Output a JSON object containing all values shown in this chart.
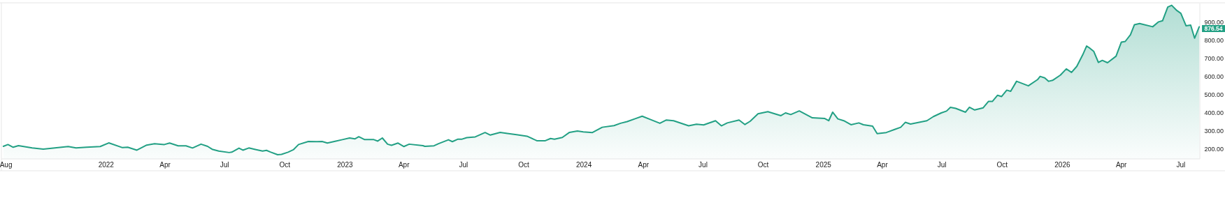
{
  "chart_data": {
    "type": "area",
    "color": "#22a084",
    "xlim": [
      "2021-07-25",
      "2026-07-30"
    ],
    "ylim": [
      150,
      1005
    ],
    "xticks": [
      {
        "value": "2021-08-01",
        "label": "Aug"
      },
      {
        "value": "2022-01-01",
        "label": "2022"
      },
      {
        "value": "2022-04-01",
        "label": "Apr"
      },
      {
        "value": "2022-07-01",
        "label": "Jul"
      },
      {
        "value": "2022-10-01",
        "label": "Oct"
      },
      {
        "value": "2023-01-01",
        "label": "2023"
      },
      {
        "value": "2023-04-01",
        "label": "Apr"
      },
      {
        "value": "2023-07-01",
        "label": "Jul"
      },
      {
        "value": "2023-10-01",
        "label": "Oct"
      },
      {
        "value": "2024-01-01",
        "label": "2024"
      },
      {
        "value": "2024-04-01",
        "label": "Apr"
      },
      {
        "value": "2024-07-01",
        "label": "Jul"
      },
      {
        "value": "2024-10-01",
        "label": "Oct"
      },
      {
        "value": "2025-01-01",
        "label": "2025"
      },
      {
        "value": "2025-04-01",
        "label": "Apr"
      },
      {
        "value": "2025-07-01",
        "label": "Jul"
      },
      {
        "value": "2025-10-01",
        "label": "Oct"
      },
      {
        "value": "2026-01-01",
        "label": "2026"
      },
      {
        "value": "2026-04-01",
        "label": "Apr"
      },
      {
        "value": "2026-07-01",
        "label": "Jul"
      }
    ],
    "yticks": [
      {
        "value": 200,
        "label": "200.00"
      },
      {
        "value": 300,
        "label": "300.00"
      },
      {
        "value": 400,
        "label": "400.00"
      },
      {
        "value": 500,
        "label": "500.00"
      },
      {
        "value": 600,
        "label": "600.00"
      },
      {
        "value": 700,
        "label": "700.00"
      },
      {
        "value": 800,
        "label": "800.00"
      },
      {
        "value": 900,
        "label": "900.00"
      }
    ],
    "x": [
      "2021-07-28",
      "2021-08-04",
      "2021-08-12",
      "2021-08-20",
      "2021-09-10",
      "2021-09-27",
      "2021-11-04",
      "2021-11-16",
      "2021-12-02",
      "2021-12-23",
      "2022-01-05",
      "2022-01-26",
      "2022-02-03",
      "2022-02-17",
      "2022-03-04",
      "2022-03-16",
      "2022-03-31",
      "2022-04-08",
      "2022-04-21",
      "2022-05-03",
      "2022-05-13",
      "2022-05-26",
      "2022-06-05",
      "2022-06-12",
      "2022-06-22",
      "2022-07-08",
      "2022-07-12",
      "2022-07-23",
      "2022-07-29",
      "2022-08-07",
      "2022-08-17",
      "2022-08-28",
      "2022-09-03",
      "2022-09-09",
      "2022-09-20",
      "2022-09-26",
      "2022-10-06",
      "2022-10-14",
      "2022-10-22",
      "2022-11-06",
      "2022-11-19",
      "2022-11-27",
      "2022-12-05",
      "2022-12-18",
      "2022-12-28",
      "2023-01-08",
      "2023-01-16",
      "2023-01-22",
      "2023-01-31",
      "2023-02-14",
      "2023-02-20",
      "2023-02-27",
      "2023-03-07",
      "2023-03-13",
      "2023-03-23",
      "2023-04-01",
      "2023-04-09",
      "2023-04-30",
      "2023-05-03",
      "2023-05-17",
      "2023-05-24",
      "2023-06-08",
      "2023-06-14",
      "2023-06-22",
      "2023-06-28",
      "2023-07-06",
      "2023-07-19",
      "2023-08-03",
      "2023-08-11",
      "2023-08-26",
      "2023-09-06",
      "2023-09-20",
      "2023-10-06",
      "2023-10-21",
      "2023-11-03",
      "2023-11-11",
      "2023-11-17",
      "2023-11-29",
      "2023-12-10",
      "2023-12-22",
      "2023-12-31",
      "2024-01-14",
      "2024-01-29",
      "2024-02-16",
      "2024-02-26",
      "2024-03-07",
      "2024-03-20",
      "2024-03-30",
      "2024-04-12",
      "2024-04-26",
      "2024-05-06",
      "2024-05-17",
      "2024-06-09",
      "2024-06-21",
      "2024-07-02",
      "2024-07-20",
      "2024-07-29",
      "2024-08-07",
      "2024-08-25",
      "2024-09-03",
      "2024-09-11",
      "2024-09-23",
      "2024-10-08",
      "2024-10-28",
      "2024-11-04",
      "2024-11-12",
      "2024-11-25",
      "2024-12-15",
      "2025-01-03",
      "2025-01-09",
      "2025-01-15",
      "2025-01-23",
      "2025-02-01",
      "2025-02-12",
      "2025-02-24",
      "2025-03-03",
      "2025-03-17",
      "2025-03-24",
      "2025-04-07",
      "2025-04-19",
      "2025-04-29",
      "2025-05-06",
      "2025-05-14",
      "2025-06-08",
      "2025-06-18",
      "2025-06-30",
      "2025-07-08",
      "2025-07-14",
      "2025-07-22",
      "2025-08-06",
      "2025-08-12",
      "2025-08-20",
      "2025-09-02",
      "2025-09-10",
      "2025-09-16",
      "2025-09-24",
      "2025-09-30",
      "2025-10-08",
      "2025-10-14",
      "2025-10-23",
      "2025-11-10",
      "2025-11-24",
      "2025-11-28",
      "2025-12-05",
      "2025-12-11",
      "2025-12-17",
      "2025-12-29",
      "2026-01-07",
      "2026-01-15",
      "2026-01-23",
      "2026-02-01",
      "2026-02-07",
      "2026-02-12",
      "2026-02-18",
      "2026-02-25",
      "2026-03-03",
      "2026-03-11",
      "2026-03-24",
      "2026-04-01",
      "2026-04-07",
      "2026-04-15",
      "2026-04-21",
      "2026-04-29",
      "2026-05-19",
      "2026-05-28",
      "2026-06-03",
      "2026-06-11",
      "2026-06-17",
      "2026-06-25",
      "2026-07-01",
      "2026-07-09",
      "2026-07-16",
      "2026-07-22",
      "2026-07-29"
    ],
    "values": [
      219,
      229,
      214,
      223,
      210,
      204,
      218,
      210,
      214,
      218,
      238,
      212,
      214,
      198,
      226,
      233,
      229,
      237,
      222,
      222,
      210,
      231,
      219,
      203,
      193,
      185,
      187,
      209,
      198,
      210,
      202,
      193,
      197,
      188,
      173,
      175,
      187,
      200,
      229,
      246,
      245,
      246,
      237,
      248,
      256,
      265,
      260,
      272,
      256,
      256,
      248,
      265,
      231,
      225,
      237,
      218,
      231,
      223,
      219,
      222,
      234,
      255,
      245,
      258,
      258,
      267,
      271,
      295,
      281,
      296,
      290,
      283,
      275,
      250,
      250,
      262,
      258,
      268,
      296,
      303,
      299,
      295,
      324,
      333,
      346,
      355,
      372,
      385,
      366,
      346,
      364,
      360,
      332,
      341,
      337,
      360,
      332,
      348,
      364,
      339,
      357,
      398,
      410,
      388,
      403,
      394,
      414,
      376,
      372,
      360,
      407,
      370,
      360,
      338,
      348,
      338,
      330,
      289,
      295,
      311,
      324,
      351,
      342,
      360,
      383,
      403,
      413,
      434,
      428,
      407,
      434,
      419,
      431,
      466,
      466,
      500,
      493,
      528,
      522,
      577,
      552,
      586,
      604,
      596,
      577,
      582,
      611,
      645,
      626,
      659,
      722,
      771,
      759,
      741,
      681,
      692,
      679,
      715,
      792,
      796,
      833,
      888,
      895,
      877,
      904,
      910,
      985,
      995,
      966,
      951,
      882,
      886,
      814,
      876.54
    ],
    "annotations": [
      {
        "text": "876.54",
        "x": "2026-07-29",
        "y": 876.54
      }
    ]
  }
}
